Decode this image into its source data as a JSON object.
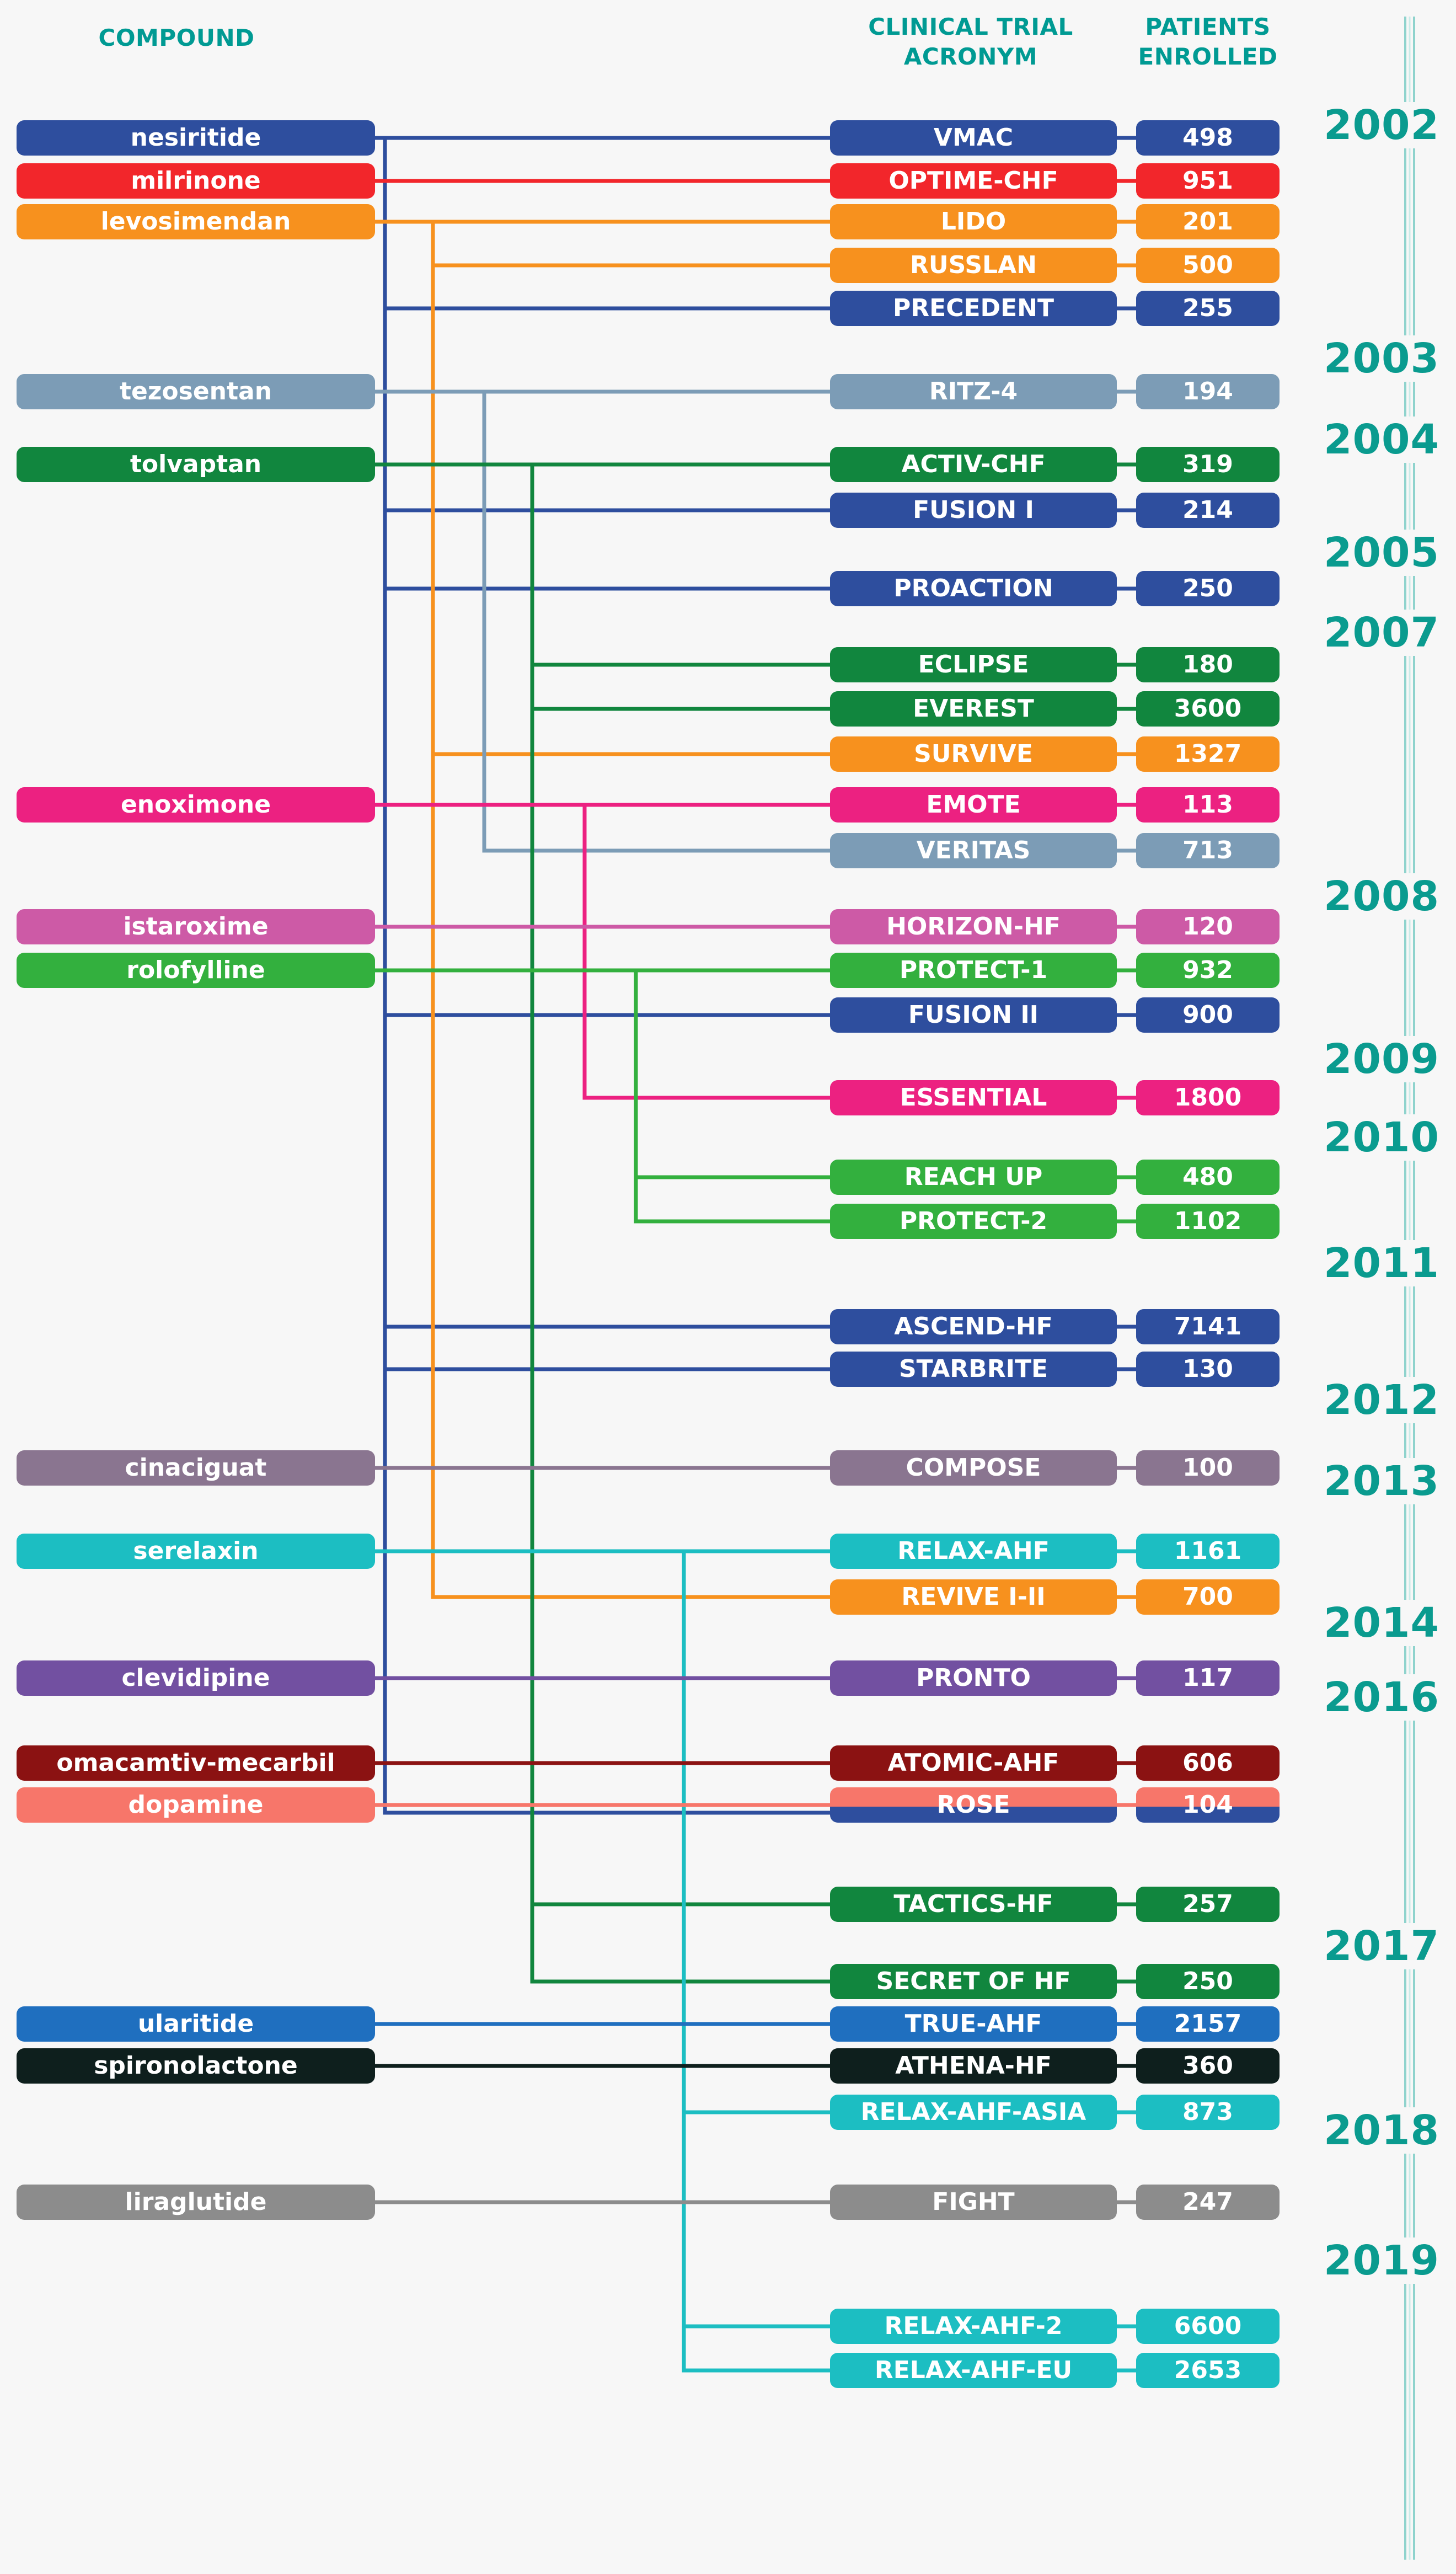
{
  "headers": {
    "compound": "COMPOUND",
    "trial_line1": "CLINICAL TRIAL",
    "trial_line2": "ACRONYM",
    "patients_line1": "PATIENTS",
    "patients_line2": "ENROLLED"
  },
  "compounds": [
    {
      "id": "nesiritide",
      "label": "nesiritide",
      "color": "#2e4e9e"
    },
    {
      "id": "milrinone",
      "label": "milrinone",
      "color": "#f2262b"
    },
    {
      "id": "levosimendan",
      "label": "levosimendan",
      "color": "#f7911e"
    },
    {
      "id": "tezosentan",
      "label": "tezosentan",
      "color": "#7c9cb6"
    },
    {
      "id": "tolvaptan",
      "label": "tolvaptan",
      "color": "#11863e"
    },
    {
      "id": "enoximone",
      "label": "enoximone",
      "color": "#ec2181"
    },
    {
      "id": "istaroxime",
      "label": "istaroxime",
      "color": "#cd5aa6"
    },
    {
      "id": "rolofylline",
      "label": "rolofylline",
      "color": "#33b03e"
    },
    {
      "id": "cinaciguat",
      "label": "cinaciguat",
      "color": "#8a7590"
    },
    {
      "id": "serelaxin",
      "label": "serelaxin",
      "color": "#1cbec2"
    },
    {
      "id": "clevidipine",
      "label": "clevidipine",
      "color": "#7250a1"
    },
    {
      "id": "omacamtiv",
      "label": "omacamtiv-mecarbil",
      "color": "#8b1212"
    },
    {
      "id": "dopamine",
      "label": "dopamine",
      "color": "#f7766a"
    },
    {
      "id": "ularitide",
      "label": "ularitide",
      "color": "#1f6fbf"
    },
    {
      "id": "spironolactone",
      "label": "spironolactone",
      "color": "#0e1f1d"
    },
    {
      "id": "liraglutide",
      "label": "liraglutide",
      "color": "#8c8c8c"
    }
  ],
  "trials": [
    {
      "acronym": "VMAC",
      "patients": "498",
      "compound": "nesiritide"
    },
    {
      "acronym": "OPTIME-CHF",
      "patients": "951",
      "compound": "milrinone"
    },
    {
      "acronym": "LIDO",
      "patients": "201",
      "compound": "levosimendan"
    },
    {
      "acronym": "RUSSLAN",
      "patients": "500",
      "compound": "levosimendan"
    },
    {
      "acronym": "PRECEDENT",
      "patients": "255",
      "compound": "nesiritide"
    },
    {
      "acronym": "RITZ-4",
      "patients": "194",
      "compound": "tezosentan"
    },
    {
      "acronym": "ACTIV-CHF",
      "patients": "319",
      "compound": "tolvaptan"
    },
    {
      "acronym": "FUSION I",
      "patients": "214",
      "compound": "nesiritide"
    },
    {
      "acronym": "PROACTION",
      "patients": "250",
      "compound": "nesiritide"
    },
    {
      "acronym": "ECLIPSE",
      "patients": "180",
      "compound": "tolvaptan"
    },
    {
      "acronym": "EVEREST",
      "patients": "3600",
      "compound": "tolvaptan"
    },
    {
      "acronym": "SURVIVE",
      "patients": "1327",
      "compound": "levosimendan"
    },
    {
      "acronym": "EMOTE",
      "patients": "113",
      "compound": "enoximone"
    },
    {
      "acronym": "VERITAS",
      "patients": "713",
      "compound": "tezosentan"
    },
    {
      "acronym": "HORIZON-HF",
      "patients": "120",
      "compound": "istaroxime"
    },
    {
      "acronym": "PROTECT-1",
      "patients": "932",
      "compound": "rolofylline"
    },
    {
      "acronym": "FUSION II",
      "patients": "900",
      "compound": "nesiritide"
    },
    {
      "acronym": "ESSENTIAL",
      "patients": "1800",
      "compound": "enoximone"
    },
    {
      "acronym": "REACH UP",
      "patients": "480",
      "compound": "rolofylline"
    },
    {
      "acronym": "PROTECT-2",
      "patients": "1102",
      "compound": "rolofylline"
    },
    {
      "acronym": "ASCEND-HF",
      "patients": "7141",
      "compound": "nesiritide"
    },
    {
      "acronym": "STARBRITE",
      "patients": "130",
      "compound": "nesiritide"
    },
    {
      "acronym": "COMPOSE",
      "patients": "100",
      "compound": "cinaciguat"
    },
    {
      "acronym": "RELAX-AHF",
      "patients": "1161",
      "compound": "serelaxin"
    },
    {
      "acronym": "REVIVE I-II",
      "patients": "700",
      "compound": "levosimendan"
    },
    {
      "acronym": "PRONTO",
      "patients": "117",
      "compound": "clevidipine"
    },
    {
      "acronym": "ATOMIC-AHF",
      "patients": "606",
      "compound": "omacamtiv"
    },
    {
      "acronym": "ROSE",
      "patients": "104",
      "compound": "dopamine",
      "compound2": "nesiritide"
    },
    {
      "acronym": "TACTICS-HF",
      "patients": "257",
      "compound": "tolvaptan"
    },
    {
      "acronym": "SECRET OF HF",
      "patients": "250",
      "compound": "tolvaptan"
    },
    {
      "acronym": "TRUE-AHF",
      "patients": "2157",
      "compound": "ularitide"
    },
    {
      "acronym": "ATHENA-HF",
      "patients": "360",
      "compound": "spironolactone"
    },
    {
      "acronym": "RELAX-AHF-ASIA",
      "patients": "873",
      "compound": "serelaxin"
    },
    {
      "acronym": "FIGHT",
      "patients": "247",
      "compound": "liraglutide"
    },
    {
      "acronym": "RELAX-AHF-2",
      "patients": "6600",
      "compound": "serelaxin"
    },
    {
      "acronym": "RELAX-AHF-EU",
      "patients": "2653",
      "compound": "serelaxin"
    }
  ],
  "years": [
    "2002",
    "2003",
    "2004",
    "2005",
    "2007",
    "2008",
    "2009",
    "2010",
    "2011",
    "2012",
    "2013",
    "2014",
    "2016",
    "2017",
    "2018",
    "2019"
  ]
}
